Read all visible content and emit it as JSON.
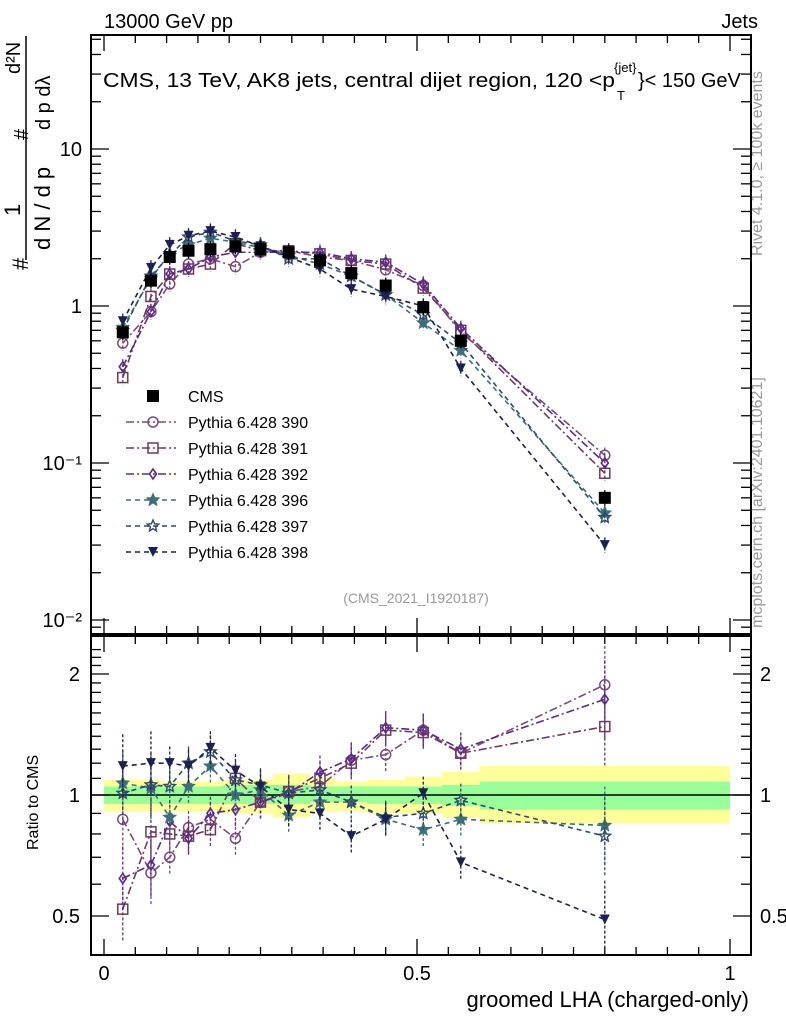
{
  "header": {
    "left": "13000 GeV pp",
    "right": "Jets"
  },
  "side_labels": {
    "rivet": "Rivet 4.1.0, ≥ 100k events",
    "mcplots": "mcplots.cern.ch [arXiv:2401.10621]"
  },
  "chart_data": [
    {
      "type": "line",
      "panel": "main",
      "title": "CMS, 13 TeV, AK8 jets, central dijet region, 120 < p_T^{jet} < 150 GeV",
      "title_parts": {
        "main": "CMS, 13 TeV, AK8 jets, central dijet region, 120 <p",
        "sup": "{jet}",
        "sub": "T",
        "end": "}< 150 GeV"
      },
      "ylabel": "1/dN/dp_T  d²N/dp_T dλ",
      "ylabel_parts": {
        "frac1_num": "1",
        "frac1_den": "d N / d p",
        "frac2_num": "d²N",
        "frac2_den": "d p  dλ",
        "hash": "#"
      },
      "yscale": "log",
      "ylim": [
        0.008,
        60
      ],
      "xlim": [
        -0.02,
        1.03
      ],
      "yticks": [
        {
          "v": 0.01,
          "label": "10⁻²"
        },
        {
          "v": 0.1,
          "label": "10⁻¹"
        },
        {
          "v": 1,
          "label": "1"
        },
        {
          "v": 10,
          "label": "10"
        }
      ],
      "analysis_tag": "(CMS_2021_I1920187)",
      "legend_position": "center-left",
      "x": [
        0.03,
        0.075,
        0.105,
        0.135,
        0.17,
        0.21,
        0.25,
        0.295,
        0.345,
        0.395,
        0.45,
        0.51,
        0.57,
        0.8
      ],
      "series": [
        {
          "name": "CMS",
          "marker": "filled-square",
          "color": "#000000",
          "line": "none",
          "values": [
            0.68,
            1.45,
            2.05,
            2.25,
            2.3,
            2.4,
            2.3,
            2.2,
            1.95,
            1.62,
            1.35,
            0.98,
            0.6,
            0.06
          ]
        },
        {
          "name": "Pythia 6.428 390",
          "marker": "open-circle",
          "color": "#7a4a7a",
          "line": "dashdot",
          "values": [
            0.58,
            0.92,
            1.38,
            1.85,
            2.0,
            1.78,
            2.2,
            2.25,
            2.05,
            1.95,
            1.7,
            1.35,
            0.68,
            0.112
          ]
        },
        {
          "name": "Pythia 6.428 391",
          "marker": "open-square",
          "color": "#6e3a5e",
          "line": "dashdot",
          "values": [
            0.35,
            1.15,
            1.6,
            1.72,
            1.85,
            2.5,
            2.25,
            2.25,
            2.15,
            1.95,
            1.85,
            1.3,
            0.7,
            0.086
          ]
        },
        {
          "name": "Pythia 6.428 392",
          "marker": "open-diamond",
          "color": "#5a2a8a",
          "line": "dashdot",
          "values": [
            0.41,
            0.92,
            1.6,
            1.72,
            2.05,
            2.2,
            2.2,
            2.2,
            2.2,
            2.0,
            1.9,
            1.38,
            0.72,
            0.1
          ]
        },
        {
          "name": "Pythia 6.428 396",
          "marker": "filled-star",
          "color": "#3e6e7a",
          "line": "dashed",
          "values": [
            0.73,
            1.5,
            2.15,
            2.45,
            2.7,
            2.55,
            2.35,
            2.1,
            1.85,
            1.55,
            1.18,
            0.78,
            0.52,
            0.048
          ]
        },
        {
          "name": "Pythia 6.428 397",
          "marker": "open-star",
          "color": "#2e4a6a",
          "line": "dashed",
          "values": [
            0.7,
            1.55,
            2.1,
            2.75,
            2.95,
            2.6,
            2.45,
            2.0,
            2.0,
            1.55,
            1.18,
            0.88,
            0.58,
            0.045
          ]
        },
        {
          "name": "Pythia 6.428 398",
          "marker": "filled-triangle-down",
          "color": "#1e2050",
          "line": "dashed",
          "values": [
            0.8,
            1.75,
            2.45,
            2.8,
            3.0,
            2.75,
            2.4,
            2.05,
            1.72,
            1.28,
            1.15,
            1.0,
            0.4,
            0.03
          ]
        }
      ]
    },
    {
      "type": "line",
      "panel": "ratio",
      "ylabel": "Ratio to CMS",
      "xlabel": "groomed LHA (charged-only)",
      "yscale": "log",
      "ylim": [
        0.4,
        2.4
      ],
      "xlim": [
        -0.02,
        1.03
      ],
      "yticks": [
        {
          "v": 0.5,
          "label": "0.5"
        },
        {
          "v": 1,
          "label": "1"
        },
        {
          "v": 2,
          "label": "2"
        }
      ],
      "xticks": [
        {
          "v": 0,
          "label": "0"
        },
        {
          "v": 0.5,
          "label": "0.5"
        },
        {
          "v": 1,
          "label": "1"
        }
      ],
      "uncertainty_bins": [
        {
          "x0": 0.0,
          "x1": 0.09,
          "inner": [
            0.95,
            1.05
          ],
          "outer": [
            0.91,
            1.09
          ]
        },
        {
          "x0": 0.09,
          "x1": 0.19,
          "inner": [
            0.95,
            1.05
          ],
          "outer": [
            0.91,
            1.08
          ]
        },
        {
          "x0": 0.19,
          "x1": 0.27,
          "inner": [
            0.95,
            1.06
          ],
          "outer": [
            0.9,
            1.09
          ]
        },
        {
          "x0": 0.27,
          "x1": 0.33,
          "inner": [
            0.95,
            1.06
          ],
          "outer": [
            0.88,
            1.13
          ]
        },
        {
          "x0": 0.33,
          "x1": 0.37,
          "inner": [
            0.96,
            1.05
          ],
          "outer": [
            0.91,
            1.1
          ]
        },
        {
          "x0": 0.37,
          "x1": 0.42,
          "inner": [
            0.96,
            1.05
          ],
          "outer": [
            0.91,
            1.08
          ]
        },
        {
          "x0": 0.42,
          "x1": 0.48,
          "inner": [
            0.95,
            1.05
          ],
          "outer": [
            0.9,
            1.09
          ]
        },
        {
          "x0": 0.48,
          "x1": 0.54,
          "inner": [
            0.95,
            1.05
          ],
          "outer": [
            0.9,
            1.11
          ]
        },
        {
          "x0": 0.54,
          "x1": 0.6,
          "inner": [
            0.94,
            1.06
          ],
          "outer": [
            0.88,
            1.14
          ]
        },
        {
          "x0": 0.6,
          "x1": 1.0,
          "inner": [
            0.92,
            1.08
          ],
          "outer": [
            0.85,
            1.18
          ]
        }
      ],
      "x": [
        0.03,
        0.075,
        0.105,
        0.135,
        0.17,
        0.21,
        0.25,
        0.295,
        0.345,
        0.395,
        0.45,
        0.51,
        0.57,
        0.8
      ],
      "series": [
        {
          "name": "Pythia 6.428 390",
          "values": [
            0.87,
            0.64,
            0.7,
            0.83,
            0.87,
            0.78,
            0.96,
            1.02,
            1.05,
            1.22,
            1.26,
            1.45,
            1.27,
            1.88
          ]
        },
        {
          "name": "Pythia 6.428 391",
          "values": [
            0.52,
            0.81,
            0.8,
            0.79,
            0.82,
            1.1,
            0.96,
            1.02,
            1.1,
            1.2,
            1.45,
            1.43,
            1.27,
            1.48
          ]
        },
        {
          "name": "Pythia 6.428 392",
          "values": [
            0.62,
            0.67,
            0.86,
            0.78,
            0.9,
            0.92,
            0.96,
            1.01,
            1.14,
            1.23,
            1.47,
            1.45,
            1.3,
            1.73
          ]
        },
        {
          "name": "Pythia 6.428 396",
          "values": [
            1.07,
            1.04,
            0.88,
            1.05,
            1.18,
            1.0,
            1.03,
            0.89,
            0.96,
            0.96,
            0.87,
            0.82,
            0.87,
            0.84
          ]
        },
        {
          "name": "Pythia 6.428 397",
          "values": [
            1.01,
            1.06,
            1.05,
            1.2,
            1.28,
            1.09,
            1.06,
            1.01,
            1.03,
            0.96,
            0.88,
            0.9,
            0.97,
            0.79
          ]
        },
        {
          "name": "Pythia 6.428 398",
          "values": [
            1.18,
            1.2,
            1.2,
            1.18,
            1.31,
            1.15,
            1.05,
            0.92,
            0.9,
            0.79,
            0.87,
            1.01,
            0.68,
            0.49
          ]
        }
      ]
    }
  ]
}
